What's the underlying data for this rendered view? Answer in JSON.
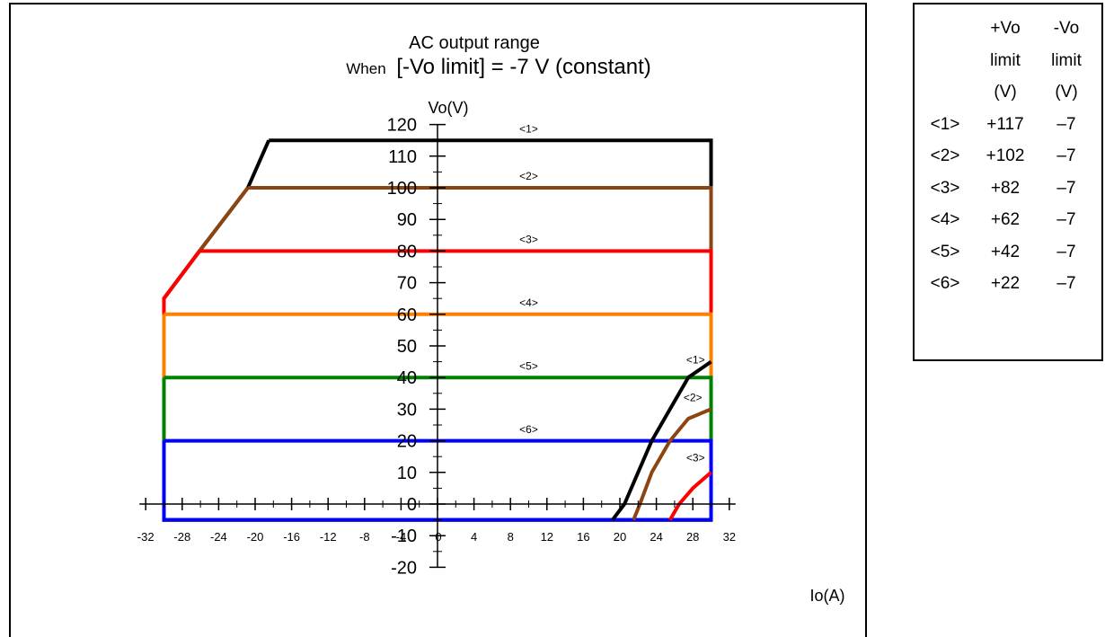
{
  "chart_data": {
    "type": "line",
    "title": "AC output range",
    "subtitle_prefix": "When",
    "subtitle_main": "[-Vo limit] = -7 V (constant)",
    "xlabel": "Io(A)",
    "ylabel": "Vo(V)",
    "xlim": [
      -32,
      32
    ],
    "ylim": [
      -20,
      120
    ],
    "x_ticks": [
      -32,
      -28,
      -24,
      -20,
      -16,
      -12,
      -8,
      -4,
      0,
      4,
      8,
      12,
      16,
      20,
      24,
      28,
      32
    ],
    "x_tick_labels": [
      "-32",
      "-28",
      "-24",
      "-20",
      "-16",
      "-12",
      "-8",
      "-4",
      "0",
      "4",
      "8",
      "12",
      "16",
      "20",
      "24",
      "28",
      "32"
    ],
    "y_ticks": [
      -20,
      -10,
      0,
      10,
      20,
      30,
      40,
      50,
      60,
      70,
      80,
      90,
      100,
      110,
      120
    ],
    "y_tick_labels": [
      "-20",
      "-10",
      "0",
      "10",
      "20",
      "30",
      "40",
      "50",
      "60",
      "70",
      "80",
      "90",
      "100",
      "110",
      "120"
    ],
    "grid": false,
    "series": [
      {
        "name": "<1>",
        "color": "#000000",
        "points": [
          [
            -18.5,
            115
          ],
          [
            -20.8,
            100
          ],
          [
            -26.1,
            80
          ],
          [
            -30,
            65
          ],
          [
            -30,
            60
          ],
          [
            -30,
            -5
          ],
          [
            30,
            -5
          ],
          [
            30,
            115
          ],
          [
            -18.5,
            115
          ]
        ]
      },
      {
        "name": "<2>",
        "color": "#8B4513",
        "points": [
          [
            -20.8,
            100
          ],
          [
            -26.1,
            80
          ],
          [
            -30,
            65
          ],
          [
            -30,
            60
          ],
          [
            -30,
            -5
          ],
          [
            30,
            -5
          ],
          [
            30,
            100
          ],
          [
            -20.8,
            100
          ]
        ]
      },
      {
        "name": "<3>",
        "color": "#FF0000",
        "points": [
          [
            -26.1,
            80
          ],
          [
            -30,
            65
          ],
          [
            -30,
            60
          ],
          [
            -30,
            -5
          ],
          [
            30,
            -5
          ],
          [
            30,
            80
          ],
          [
            -26.1,
            80
          ]
        ]
      },
      {
        "name": "<4>",
        "color": "#FF8000",
        "points": [
          [
            -30,
            60
          ],
          [
            -30,
            -5
          ],
          [
            30,
            -5
          ],
          [
            30,
            60
          ],
          [
            -30,
            60
          ]
        ]
      },
      {
        "name": "<5>",
        "color": "#008000",
        "points": [
          [
            -30,
            40
          ],
          [
            -30,
            -5
          ],
          [
            30,
            -5
          ],
          [
            30,
            40
          ],
          [
            -30,
            40
          ]
        ]
      },
      {
        "name": "<6>",
        "color": "#0000FF",
        "points": [
          [
            -30,
            20
          ],
          [
            -30,
            -5
          ],
          [
            30,
            -5
          ],
          [
            30,
            20
          ],
          [
            -30,
            20
          ]
        ]
      }
    ],
    "right_curves": [
      {
        "name": "<1>",
        "color": "#000000",
        "points": [
          [
            19.2,
            -5
          ],
          [
            20.5,
            0
          ],
          [
            22,
            10
          ],
          [
            23.5,
            20
          ],
          [
            25.5,
            30
          ],
          [
            27.5,
            40
          ],
          [
            30,
            45
          ]
        ]
      },
      {
        "name": "<2>",
        "color": "#8B4513",
        "points": [
          [
            21.5,
            -5
          ],
          [
            22.2,
            0
          ],
          [
            23.5,
            10
          ],
          [
            25.5,
            20
          ],
          [
            27.5,
            27
          ],
          [
            30,
            30
          ]
        ]
      },
      {
        "name": "<3>",
        "color": "#FF0000",
        "points": [
          [
            25.5,
            -5
          ],
          [
            26.5,
            0
          ],
          [
            28,
            5
          ],
          [
            30,
            10
          ]
        ]
      }
    ],
    "curve_labels": [
      {
        "text": "<1>",
        "x": 10,
        "y": 117.5
      },
      {
        "text": "<2>",
        "x": 10,
        "y": 102.5
      },
      {
        "text": "<3>",
        "x": 10,
        "y": 82.5
      },
      {
        "text": "<4>",
        "x": 10,
        "y": 62.5
      },
      {
        "text": "<5>",
        "x": 10,
        "y": 42.5
      },
      {
        "text": "<6>",
        "x": 10,
        "y": 22.5
      },
      {
        "text": "<1>",
        "x": 28.3,
        "y": 44.5
      },
      {
        "text": "<2>",
        "x": 28.0,
        "y": 32.5
      },
      {
        "text": "<3>",
        "x": 28.3,
        "y": 13.5
      }
    ]
  },
  "legend_table": {
    "headers": [
      [
        "",
        "+Vo",
        "-Vo"
      ],
      [
        "",
        "limit",
        "limit"
      ],
      [
        "",
        "(V)",
        "(V)"
      ]
    ],
    "rows": [
      [
        "<1>",
        "+117",
        "–7"
      ],
      [
        "<2>",
        "+102",
        "–7"
      ],
      [
        "<3>",
        "+82",
        "–7"
      ],
      [
        "<4>",
        "+62",
        "–7"
      ],
      [
        "<5>",
        "+42",
        "–7"
      ],
      [
        "<6>",
        "+22",
        "–7"
      ]
    ]
  }
}
